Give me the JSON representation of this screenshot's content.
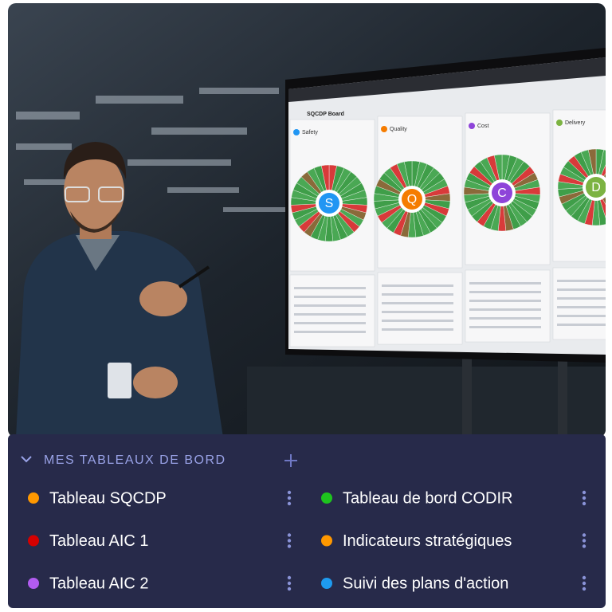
{
  "photo": {
    "board_title": "SQCDP Board",
    "panels": [
      {
        "letter": "S",
        "label": "Safety",
        "color": "#2196f3"
      },
      {
        "letter": "Q",
        "label": "Quality",
        "color": "#f57c00"
      },
      {
        "letter": "C",
        "label": "Cost",
        "color": "#8e44d9"
      },
      {
        "letter": "D",
        "label": "Delivery",
        "color": "#7cb342"
      }
    ]
  },
  "sidebar": {
    "section_title": "MES TABLEAUX DE BORD",
    "items": [
      {
        "label": "Tableau SQCDP",
        "color": "#ff9800"
      },
      {
        "label": "Tableau de bord CODIR",
        "color": "#1ec41e"
      },
      {
        "label": "Tableau AIC 1",
        "color": "#d50000"
      },
      {
        "label": "Indicateurs stratégiques",
        "color": "#ff9800"
      },
      {
        "label": "Tableau AIC 2",
        "color": "#b15cf0"
      },
      {
        "label": "Suivi des plans d'action",
        "color": "#1e9bf0"
      }
    ]
  }
}
